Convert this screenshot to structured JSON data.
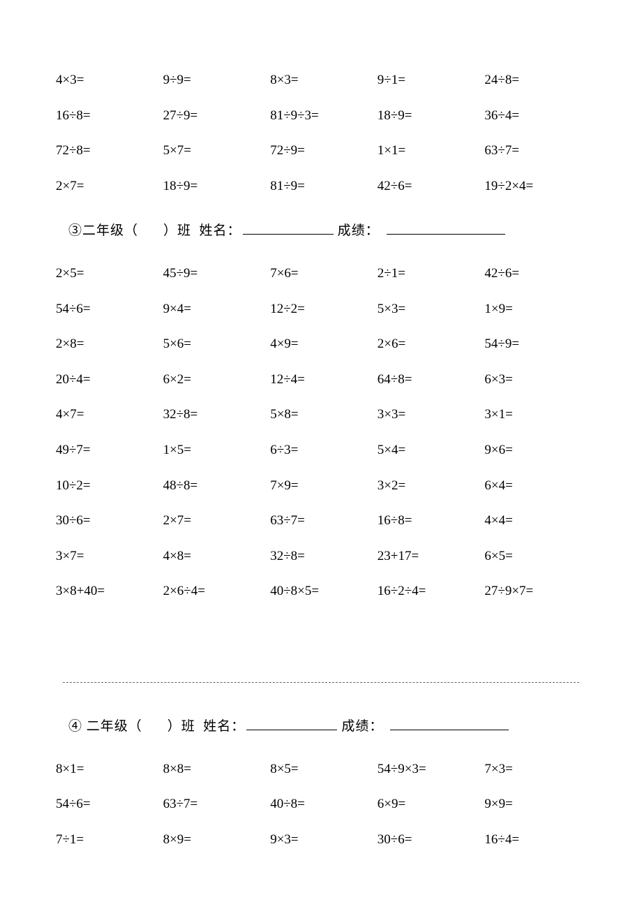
{
  "text_color": "#000000",
  "background_color": "#ffffff",
  "font_family": "SimSun",
  "base_fontsize_pt": 14,
  "columns": 5,
  "top_block": {
    "rows": [
      [
        "4×3=",
        "9÷9=",
        "8×3=",
        "9÷1=",
        "24÷8="
      ],
      [
        "16÷8=",
        "27÷9=",
        "81÷9÷3=",
        "18÷9=",
        "36÷4="
      ],
      [
        "72÷8=",
        "5×7=",
        "72÷9=",
        "1×1=",
        "63÷7="
      ],
      [
        "2×7=",
        "18÷9=",
        "81÷9=",
        "42÷6=",
        "19÷2×4="
      ]
    ]
  },
  "section3": {
    "marker": "③",
    "grade_prefix": "二年级（",
    "grade_suffix": "）班",
    "name_label": "姓名：",
    "score_label": "成绩：",
    "rows": [
      [
        "2×5=",
        "45÷9=",
        "7×6=",
        "2÷1=",
        "42÷6="
      ],
      [
        "54÷6=",
        "9×4=",
        "12÷2=",
        "5×3=",
        "1×9="
      ],
      [
        "2×8=",
        "5×6=",
        "4×9=",
        "2×6=",
        "54÷9="
      ],
      [
        "20÷4=",
        "6×2=",
        "12÷4=",
        "64÷8=",
        "6×3="
      ],
      [
        "4×7=",
        "32÷8=",
        "5×8=",
        "3×3=",
        "3×1="
      ],
      [
        "49÷7=",
        "1×5=",
        "6÷3=",
        "5×4=",
        "9×6="
      ],
      [
        "10÷2=",
        "48÷8=",
        "7×9=",
        "3×2=",
        "6×4="
      ],
      [
        "30÷6=",
        "2×7=",
        "63÷7=",
        "16÷8=",
        "4×4="
      ],
      [
        "3×7=",
        "4×8=",
        "32÷8=",
        "23+17=",
        "6×5="
      ],
      [
        "3×8+40=",
        "2×6÷4=",
        "40÷8×5=",
        "16÷2÷4=",
        "27÷9×7="
      ]
    ]
  },
  "section4": {
    "marker": "④",
    "grade_prefix": "二年级（",
    "grade_suffix": "）班",
    "name_label": "姓名：",
    "score_label": "成绩：",
    "rows": [
      [
        "8×1=",
        "8×8=",
        "8×5=",
        "54÷9×3=",
        "7×3="
      ],
      [
        "54÷6=",
        "63÷7=",
        "40÷8=",
        "6×9=",
        "9×9="
      ],
      [
        "7÷1=",
        "8×9=",
        "9×3=",
        "30÷6=",
        "16÷4="
      ]
    ]
  }
}
